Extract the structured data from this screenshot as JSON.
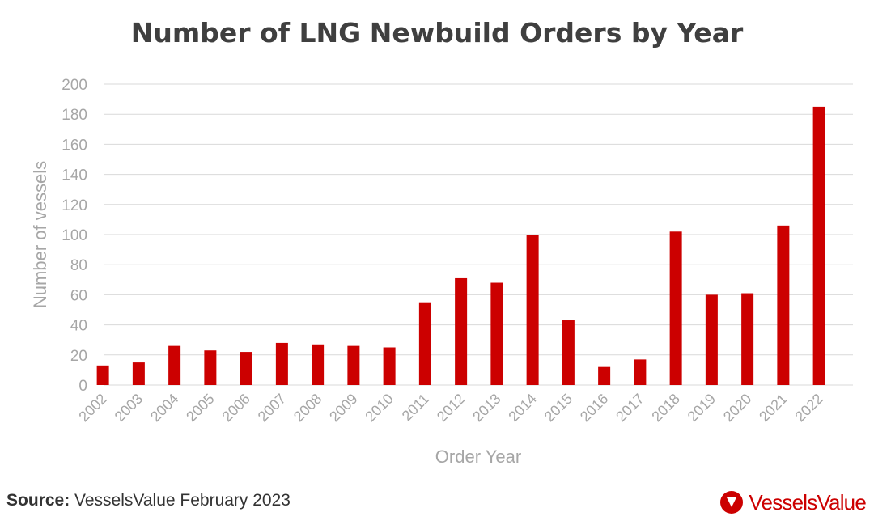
{
  "chart_data": {
    "type": "bar",
    "title": "Number of LNG Newbuild Orders by Year",
    "xlabel": "Order Year",
    "ylabel": "Number of vessels",
    "categories": [
      "2002",
      "2003",
      "2004",
      "2005",
      "2006",
      "2007",
      "2008",
      "2009",
      "2010",
      "2011",
      "2012",
      "2013",
      "2014",
      "2015",
      "2016",
      "2017",
      "2018",
      "2019",
      "2020",
      "2021",
      "2022"
    ],
    "values": [
      13,
      15,
      26,
      23,
      22,
      28,
      27,
      26,
      25,
      55,
      71,
      68,
      100,
      43,
      12,
      17,
      102,
      60,
      61,
      106,
      185
    ],
    "ylim": [
      0,
      200
    ],
    "yticks": [
      0,
      20,
      40,
      60,
      80,
      100,
      120,
      140,
      160,
      180,
      200
    ],
    "grid": true,
    "bar_color": "#cc0000"
  },
  "source": {
    "label": "Source:",
    "text": "VesselsValue February 2023"
  },
  "logo": {
    "text": "VesselsValue",
    "color": "#cc0000"
  }
}
